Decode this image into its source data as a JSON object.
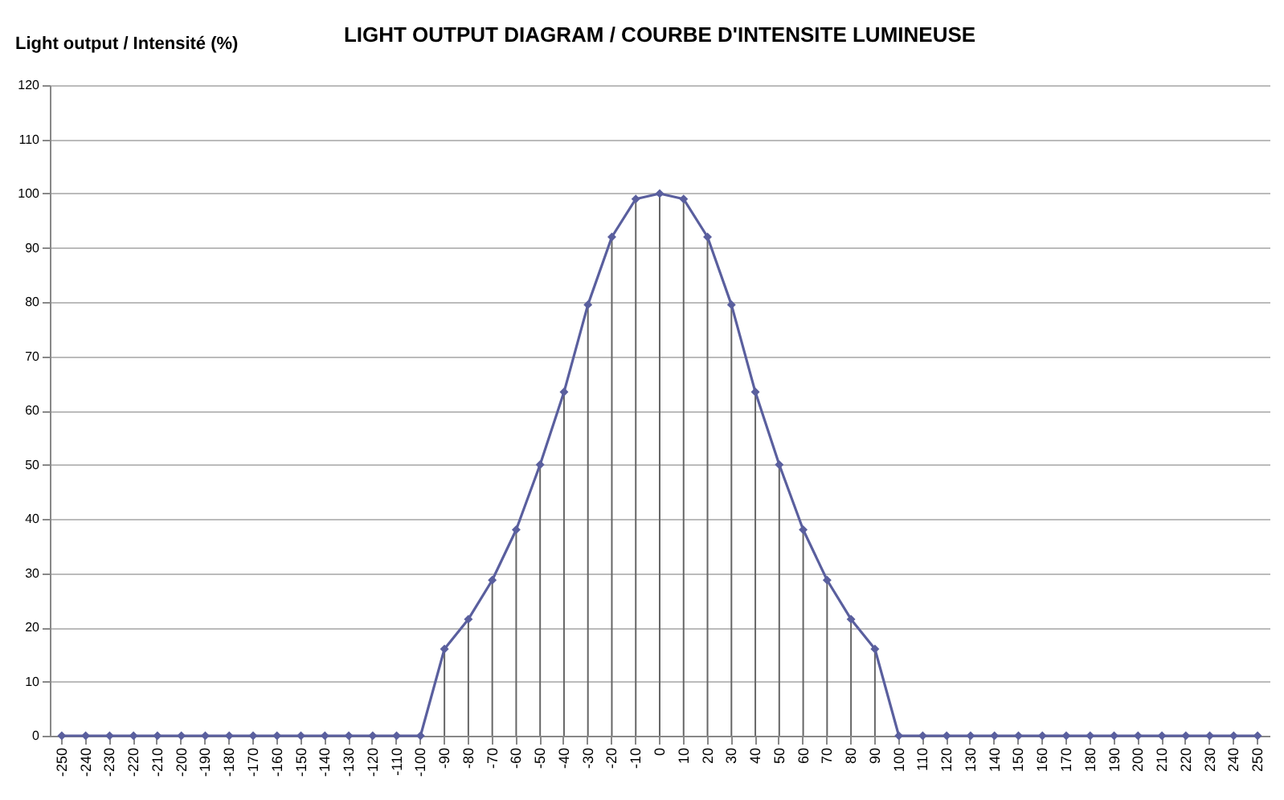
{
  "chart_data": {
    "type": "line",
    "title": "LIGHT OUTPUT DIAGRAM / COURBE D'INTENSITE LUMINEUSE",
    "ylabel": "Light output / Intensité (%)",
    "categories": [
      "-250",
      "-240",
      "-230",
      "-220",
      "-210",
      "-200",
      "-190",
      "-180",
      "-170",
      "-160",
      "-150",
      "-140",
      "-130",
      "-120",
      "-110",
      "-100",
      "-90",
      "-80",
      "-70",
      "-60",
      "-50",
      "-40",
      "-30",
      "-20",
      "-10",
      "0",
      "10",
      "20",
      "30",
      "40",
      "50",
      "60",
      "70",
      "80",
      "90",
      "100",
      "110",
      "120",
      "130",
      "140",
      "150",
      "160",
      "170",
      "180",
      "190",
      "200",
      "210",
      "220",
      "230",
      "240",
      "250"
    ],
    "series": [
      {
        "type": "bar",
        "color": "#666666",
        "values": [
          0,
          0,
          0,
          0,
          0,
          0,
          0,
          0,
          0,
          0,
          0,
          0,
          0,
          0,
          0,
          0,
          16,
          21.5,
          28.7,
          38,
          50,
          63.4,
          79.5,
          92,
          99,
          100,
          99,
          92,
          79.5,
          63.4,
          50,
          38,
          28.7,
          21.5,
          16,
          0,
          0,
          0,
          0,
          0,
          0,
          0,
          0,
          0,
          0,
          0,
          0,
          0,
          0,
          0,
          0
        ]
      },
      {
        "color": "#5a5f9e",
        "values": [
          0,
          0,
          0,
          0,
          0,
          0,
          0,
          0,
          0,
          0,
          0,
          0,
          0,
          0,
          0,
          0,
          16,
          21.5,
          28.7,
          38,
          50,
          63.4,
          79.5,
          92,
          99,
          100,
          99,
          92,
          79.5,
          63.4,
          50,
          38,
          28.7,
          21.5,
          16,
          0,
          0,
          0,
          0,
          0,
          0,
          0,
          0,
          0,
          0,
          0,
          0,
          0,
          0,
          0,
          0
        ]
      }
    ],
    "ylim": [
      0,
      120
    ],
    "yticks": [
      0,
      10,
      20,
      30,
      40,
      50,
      60,
      70,
      80,
      90,
      100,
      110,
      120
    ],
    "grid": "y",
    "marker": "diamond",
    "line_style": "solid",
    "legend": false
  }
}
